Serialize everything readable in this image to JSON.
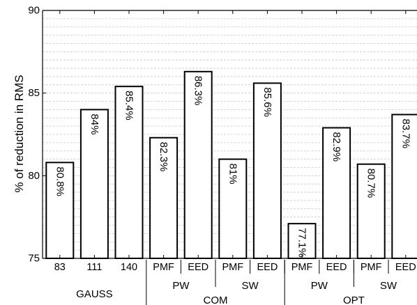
{
  "chart_data": {
    "type": "bar",
    "ylabel": "% of reduction in RMS",
    "ylim": [
      75,
      90
    ],
    "yticks": [
      75,
      80,
      85,
      90
    ],
    "grid": "horizontal dashed minor lines",
    "categories": [
      "83",
      "111",
      "140",
      "PMF",
      "EED",
      "PMF",
      "EED",
      "PMF",
      "EED",
      "PMF",
      "EED"
    ],
    "values": [
      80.8,
      84.0,
      85.4,
      82.3,
      86.3,
      81.0,
      85.6,
      77.1,
      82.9,
      80.7,
      83.7
    ],
    "value_labels": [
      "80.8%",
      "84%",
      "85.4%",
      "82.3%",
      "86.3%",
      "81%",
      "85.6%",
      "77.1%",
      "82.9%",
      "80.7%",
      "83.7%"
    ],
    "group_labels_level2": [
      {
        "label": "GAUSS",
        "from": 0,
        "to": 2
      },
      {
        "label": "PW",
        "from": 3,
        "to": 4
      },
      {
        "label": "SW",
        "from": 5,
        "to": 6
      },
      {
        "label": "PW",
        "from": 7,
        "to": 8
      },
      {
        "label": "SW",
        "from": 9,
        "to": 10
      }
    ],
    "group_labels_level3": [
      {
        "label": "COM",
        "from": 3,
        "to": 6
      },
      {
        "label": "OPT",
        "from": 7,
        "to": 10
      }
    ],
    "separators": [
      3,
      5,
      7,
      9
    ]
  }
}
